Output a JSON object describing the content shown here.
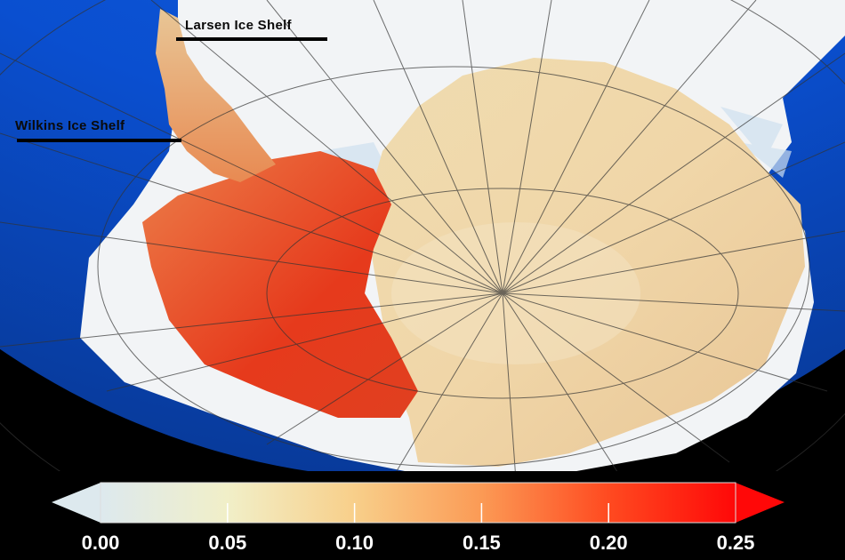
{
  "map": {
    "labels": [
      {
        "text": "Larsen Ice Shelf"
      },
      {
        "text": "Wilkins Ice Shelf"
      }
    ],
    "colors": {
      "ocean": "#0a4fd0",
      "sea_ice": "#f2f4f6",
      "low": "#dde9ee",
      "mid": "#f8cf8a",
      "high": "#ff1010"
    }
  },
  "colorbar": {
    "min": 0.0,
    "max": 0.25,
    "extend": "both",
    "tick_labels": [
      "0.00",
      "0.05",
      "0.10",
      "0.15",
      "0.20",
      "0.25"
    ],
    "colormap": [
      "#dde9ee",
      "#f1efc8",
      "#f8cf8a",
      "#fb9a55",
      "#ff4a20",
      "#ff0808"
    ]
  }
}
